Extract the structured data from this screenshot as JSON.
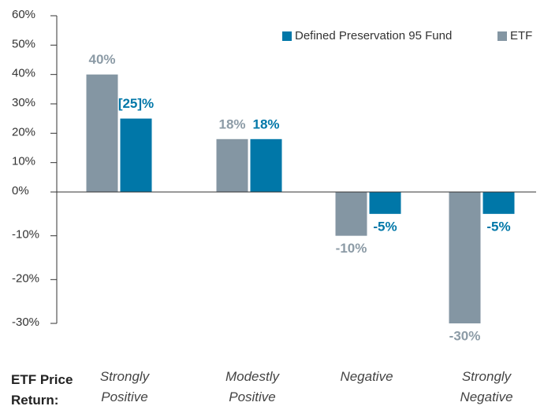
{
  "chart_data": {
    "type": "bar",
    "x_label": "ETF Price Return:",
    "categories": [
      "Strongly Positive",
      "Modestly Positive",
      "Negative",
      "Strongly Negative"
    ],
    "series": [
      {
        "name": "ETF",
        "color": "#8496a3",
        "values": [
          40,
          18,
          -10,
          -30
        ],
        "value_labels": [
          "40%",
          "18%",
          "-10%",
          "-30%"
        ]
      },
      {
        "name": "Defined Preservation 95 Fund",
        "color": "#0077a8",
        "values": [
          25,
          18,
          -5,
          -5
        ],
        "value_labels": [
          "[25]%",
          "18%",
          "-5%",
          "-5%"
        ]
      }
    ],
    "legend_order": [
      1,
      0
    ],
    "ylim": [
      -30,
      60
    ],
    "yticks": [
      {
        "value": 60,
        "label": "60%"
      },
      {
        "value": 50,
        "label": "50%"
      },
      {
        "value": 40,
        "label": "40%"
      },
      {
        "value": 30,
        "label": "30%"
      },
      {
        "value": 20,
        "label": "20%"
      },
      {
        "value": 10,
        "label": "10%"
      },
      {
        "value": 0,
        "label": "0%"
      },
      {
        "value": -10,
        "label": "-10%"
      },
      {
        "value": -20,
        "label": "-20%"
      },
      {
        "value": -30,
        "label": "-30%"
      }
    ],
    "legend": "top-right",
    "grid": false
  }
}
